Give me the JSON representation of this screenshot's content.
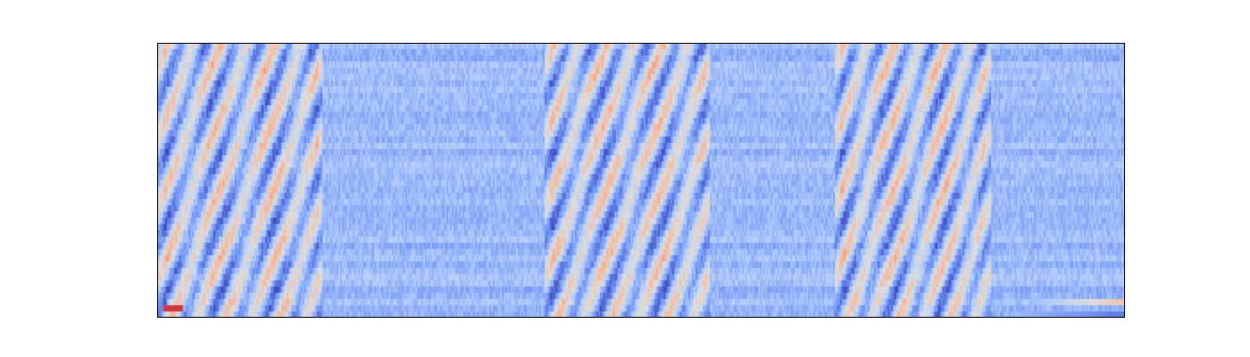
{
  "chart_data": {
    "type": "heatmap",
    "title": "",
    "xlabel": "",
    "ylabel": "",
    "axes_visible": false,
    "ticks_visible": false,
    "colormap": "coolwarm",
    "colormap_stops": [
      "#3b4cc0",
      "#7396f5",
      "#b0cbfc",
      "#dddcdc",
      "#f6b89c",
      "#e7745b",
      "#b40426"
    ],
    "background_value": 0.28,
    "n_rows": 44,
    "n_cols": 540,
    "active_segments": [
      {
        "x_start": 0.0,
        "x_end": 0.17,
        "intensity": 1.0
      },
      {
        "x_start": 0.4,
        "x_end": 0.57,
        "intensity": 1.0
      },
      {
        "x_start": 0.7,
        "x_end": 0.86,
        "intensity": 1.0
      }
    ],
    "quiet_segments": [
      {
        "x_start": 0.17,
        "x_end": 0.4
      },
      {
        "x_start": 0.57,
        "x_end": 0.7
      },
      {
        "x_start": 0.86,
        "x_end": 1.0
      }
    ],
    "notable_cells": [
      {
        "row": 42,
        "x_start": 0.005,
        "x_end": 0.025,
        "value": 0.92
      },
      {
        "row": 41,
        "x_start": 0.9,
        "x_end": 1.0,
        "value": 0.62,
        "gradient": "increasing"
      },
      {
        "row": 43,
        "x_start": 0.88,
        "x_end": 1.0,
        "value": 0.1,
        "gradient": "decreasing"
      }
    ]
  }
}
